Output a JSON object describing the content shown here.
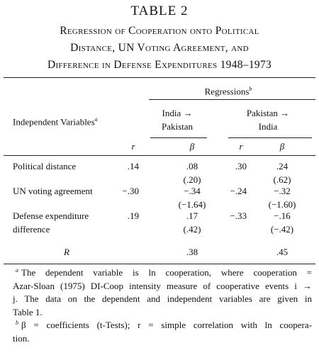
{
  "title": "TABLE 2",
  "subtitle": [
    "Regression of Cooperation onto Political",
    "Distance, UN Voting Agreement, and",
    "Difference in Defense Expenditures 1948–1973"
  ],
  "header": {
    "group": "Regressions",
    "group_note": "b",
    "stub": "Independent Variables",
    "stub_note": "a",
    "columns": [
      {
        "name": [
          "India →",
          "Pakistan"
        ],
        "sub": [
          "r",
          "β"
        ]
      },
      {
        "name": [
          "Pakistan →",
          "India"
        ],
        "sub": [
          "r",
          "β"
        ]
      }
    ]
  },
  "rows": [
    {
      "label": [
        "Political distance"
      ],
      "cells": [
        [
          ".14"
        ],
        [
          ".08",
          "(.20)"
        ],
        [
          ".30"
        ],
        [
          ".24",
          "(.62)"
        ]
      ]
    },
    {
      "label": [
        "UN voting agreement"
      ],
      "cells": [
        [
          "−.30"
        ],
        [
          "−.34",
          "(−1.64)"
        ],
        [
          "−.24"
        ],
        [
          "−.32",
          "(−1.60)"
        ]
      ]
    },
    {
      "label": [
        "Defense expenditure",
        "difference"
      ],
      "cells": [
        [
          ".19"
        ],
        [
          ".17",
          "(.42)"
        ],
        [
          "−.33"
        ],
        [
          "−.16",
          "(−.42)"
        ]
      ]
    },
    {
      "label": [
        "R"
      ],
      "cells": [
        [],
        [
          ".38"
        ],
        [],
        [
          ".45"
        ]
      ]
    }
  ],
  "footnotes": [
    {
      "mark": "a",
      "lines": [
        "The dependent variable is ln cooperation, where cooperation =",
        "Azar-Sloan (1975) DI-Coop intensity measure of cooperative events i →",
        "j. The data on the dependent and independent variables are given in",
        "Table 1."
      ]
    },
    {
      "mark": "b",
      "lines": [
        "β = coefficients (t-Tests); r = simple correlation with ln coopera-",
        "tion."
      ]
    }
  ]
}
